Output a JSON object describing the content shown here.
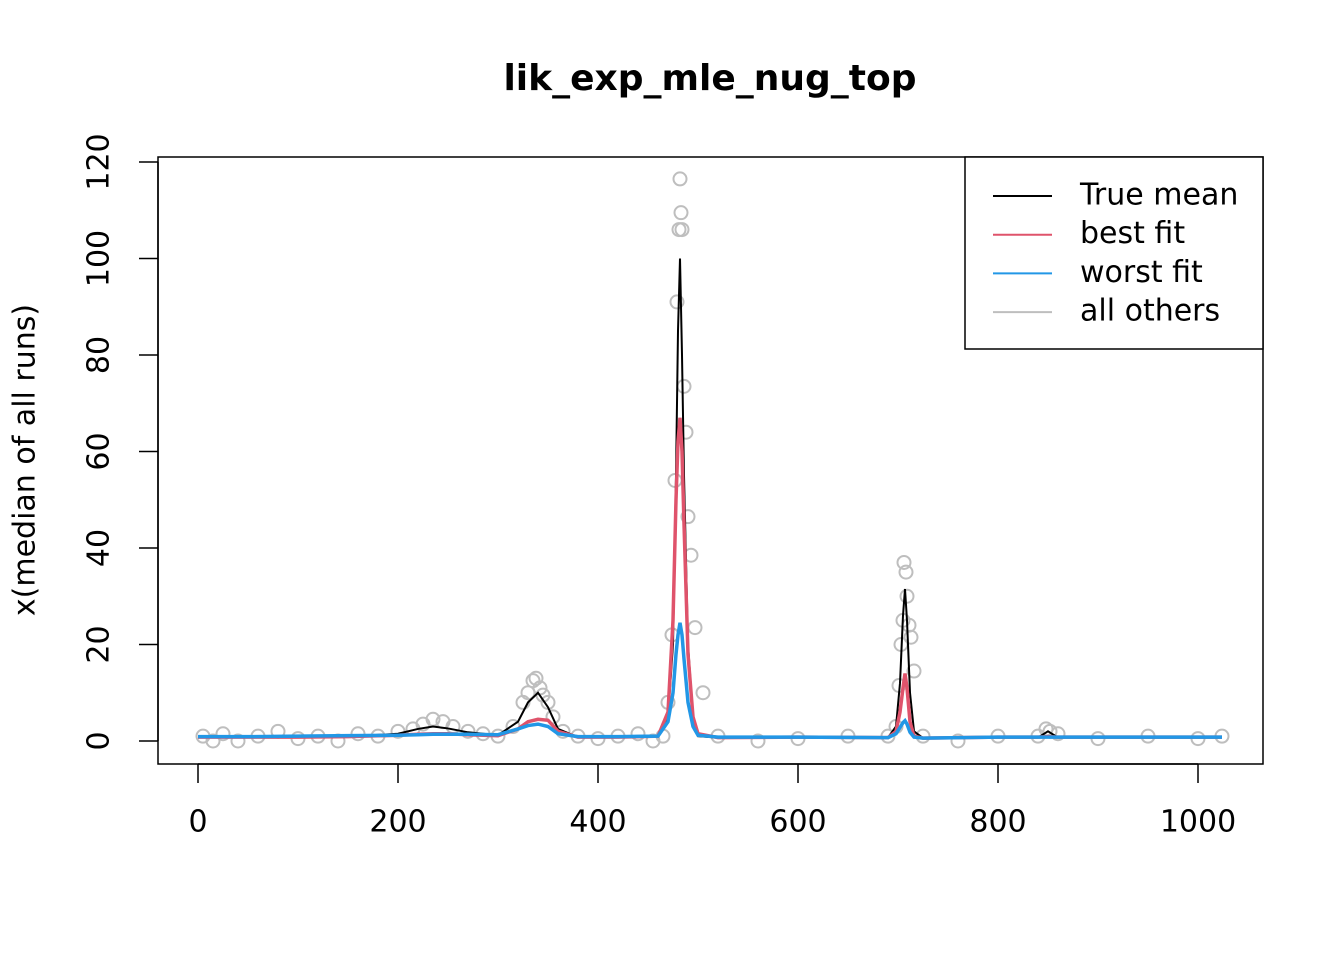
{
  "chart_data": {
    "type": "line",
    "title": "lik_exp_mle_nug_top",
    "y_label": "x(median of all runs)",
    "xlim": [
      -40,
      1065
    ],
    "ylim": [
      -4.77,
      121.04
    ],
    "xticks": [
      0,
      200,
      400,
      600,
      800,
      1000
    ],
    "yticks": [
      0,
      20,
      40,
      60,
      80,
      100,
      120
    ],
    "legend": "topright",
    "x": [
      0,
      50,
      100,
      150,
      200,
      220,
      235,
      250,
      270,
      300,
      320,
      330,
      340,
      350,
      360,
      380,
      420,
      460,
      470,
      475,
      478,
      480,
      482,
      484,
      486,
      490,
      495,
      500,
      520,
      600,
      690,
      698,
      702,
      705,
      707,
      709,
      712,
      716,
      725,
      800,
      840,
      850,
      860,
      900,
      1024
    ],
    "series": [
      {
        "name": "True mean",
        "color": "#000000",
        "width": 2,
        "values": [
          0.8,
          0.8,
          0.8,
          0.9,
          1.5,
          2.5,
          3,
          2.6,
          1.8,
          1.2,
          4,
          8,
          10,
          7,
          2.5,
          0.8,
          0.8,
          1,
          5,
          20,
          55,
          85,
          100,
          80,
          55,
          20,
          5,
          1,
          0.7,
          0.7,
          0.7,
          3,
          12,
          26,
          31.5,
          25,
          10,
          2,
          0.6,
          0.7,
          0.7,
          2,
          0.7,
          0.7,
          0.7
        ]
      },
      {
        "name": "best fit",
        "color": "#DF536B",
        "width": 3.5,
        "values": [
          0.8,
          0.8,
          0.8,
          0.9,
          1.2,
          1.4,
          1.5,
          1.5,
          1.3,
          1.1,
          2.5,
          4,
          4.5,
          4.3,
          2,
          0.8,
          0.8,
          1,
          6,
          25,
          50,
          62,
          67,
          60,
          45,
          18,
          5,
          1.5,
          0.7,
          0.8,
          0.7,
          2,
          6,
          11,
          14,
          11,
          4,
          1,
          0.6,
          0.8,
          0.8,
          0.9,
          0.8,
          0.8,
          0.8
        ]
      },
      {
        "name": "worst fit",
        "color": "#2297E6",
        "width": 3.5,
        "values": [
          0.9,
          0.9,
          1,
          1.1,
          1.2,
          1.3,
          1.4,
          1.4,
          1.4,
          1.3,
          2.5,
          3.2,
          3.5,
          3,
          1.5,
          0.9,
          0.9,
          1,
          4,
          10,
          18,
          22,
          24.5,
          22,
          17,
          8,
          3,
          1.2,
          0.8,
          0.8,
          0.7,
          1.5,
          2.8,
          3.8,
          4.2,
          3.5,
          1.8,
          0.8,
          0.6,
          0.8,
          0.8,
          0.8,
          0.8,
          0.8,
          0.8
        ]
      },
      {
        "name": "all others",
        "color": "#BEBEBE",
        "style": "points",
        "x": [
          5,
          15,
          25,
          40,
          60,
          80,
          100,
          120,
          140,
          160,
          180,
          200,
          215,
          225,
          235,
          245,
          255,
          270,
          285,
          300,
          315,
          325,
          330,
          335,
          338,
          342,
          345,
          350,
          355,
          365,
          380,
          400,
          420,
          440,
          455,
          465,
          470,
          474,
          477,
          479,
          481,
          482,
          483,
          484,
          486,
          488,
          490,
          493,
          497,
          505,
          520,
          560,
          600,
          650,
          690,
          698,
          701,
          703,
          705,
          706,
          708,
          709,
          711,
          713,
          716,
          725,
          760,
          800,
          840,
          848,
          852,
          860,
          900,
          950,
          1000,
          1024
        ],
        "values": [
          1,
          0,
          1.5,
          0,
          1,
          2,
          0.5,
          1,
          0,
          1.5,
          1,
          2,
          2.5,
          3.5,
          4.5,
          4,
          3,
          2,
          1.5,
          1,
          3,
          8,
          10,
          12.5,
          13,
          11,
          9.5,
          8,
          5,
          2,
          1,
          0.5,
          1,
          1.5,
          0,
          1,
          8,
          22,
          54,
          91,
          106,
          116.5,
          109.5,
          106,
          73.5,
          64,
          46.5,
          38.5,
          23.5,
          10,
          1,
          0,
          0.5,
          1,
          1,
          3,
          11.5,
          20,
          25,
          37,
          35,
          30,
          24,
          21.5,
          14.5,
          1,
          0,
          1,
          1,
          2.5,
          2,
          1.5,
          0.5,
          1,
          0.5,
          1
        ]
      }
    ]
  }
}
